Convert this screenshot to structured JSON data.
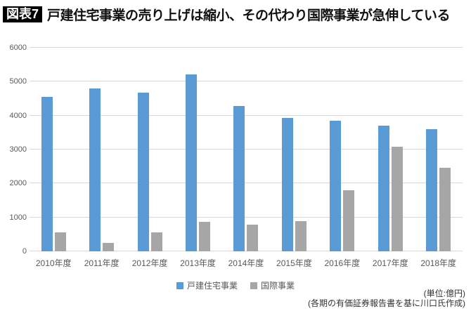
{
  "figure_label": "図表7",
  "title": "戸建住宅事業の売り上げは縮小、その代わり国際事業が急伸している",
  "notes": {
    "unit": "(単位:億円)",
    "source": "(各期の有価証券報告書を基に川口氏作成)"
  },
  "colors": {
    "series1": "#5B9BD5",
    "series2": "#A6A6A6",
    "gridline": "#D9D9D9",
    "axis_text": "#595959"
  },
  "chart_data": {
    "type": "bar",
    "title": "戸建住宅事業の売り上げは縮小、その代わり国際事業が急伸している",
    "categories": [
      "2010年度",
      "2011年度",
      "2012年度",
      "2013年度",
      "2014年度",
      "2015年度",
      "2016年度",
      "2017年度",
      "2018年度"
    ],
    "series": [
      {
        "name": "戸建住宅事業",
        "color": "#5B9BD5",
        "values": [
          4550,
          4790,
          4680,
          5210,
          4290,
          3940,
          3840,
          3700,
          3590
        ]
      },
      {
        "name": "国際事業",
        "color": "#A6A6A6",
        "values": [
          560,
          240,
          560,
          870,
          790,
          900,
          1810,
          3090,
          2470
        ]
      }
    ],
    "xlabel": "",
    "ylabel": "",
    "ylim": [
      0,
      6000
    ],
    "yticks": [
      0,
      1000,
      2000,
      3000,
      4000,
      5000,
      6000
    ],
    "grid": true,
    "legend_position": "bottom",
    "unit": "億円"
  }
}
